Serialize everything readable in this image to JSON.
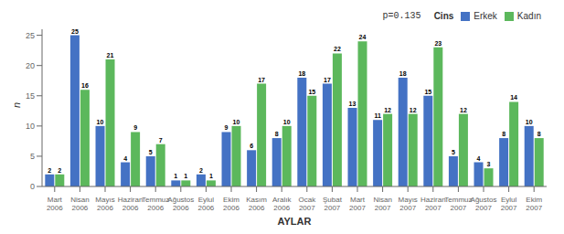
{
  "chart_data": {
    "type": "bar",
    "xlabel": "AYLAR",
    "ylabel": "n",
    "categories": [
      "Mart\n2006",
      "Nisan\n2006",
      "Mayıs\n2006",
      "Haziran\n2006",
      "Temmuz\n2006",
      "Ağustos\n2006",
      "Eylul\n2006",
      "Ekim\n2006",
      "Kasım\n2006",
      "Aralık\n2006",
      "Ocak\n2007",
      "Şubat\n2007",
      "Mart\n2007",
      "Nisan\n2007",
      "Mayıs\n2007",
      "Haziran\n2007",
      "Temmuz\n2007",
      "Ağustos\n2007",
      "Eylul\n2007",
      "Ekim\n2007"
    ],
    "series": [
      {
        "name": "Erkek",
        "color": "#4472C4",
        "values": [
          2,
          25,
          10,
          4,
          5,
          1,
          2,
          9,
          6,
          8,
          18,
          17,
          13,
          11,
          18,
          15,
          5,
          4,
          8,
          10
        ]
      },
      {
        "name": "Kadın",
        "color": "#5CB85C",
        "values": [
          2,
          16,
          21,
          9,
          7,
          1,
          1,
          10,
          17,
          10,
          15,
          22,
          24,
          12,
          12,
          23,
          12,
          3,
          14,
          8
        ]
      }
    ],
    "ylim": [
      0,
      26
    ],
    "yticks": [
      0,
      5,
      10,
      15,
      20,
      25
    ],
    "grid": false,
    "legend": "upper right",
    "legend_title": "Cins",
    "annotations": [
      "p=0.135"
    ],
    "data_labels": true
  }
}
